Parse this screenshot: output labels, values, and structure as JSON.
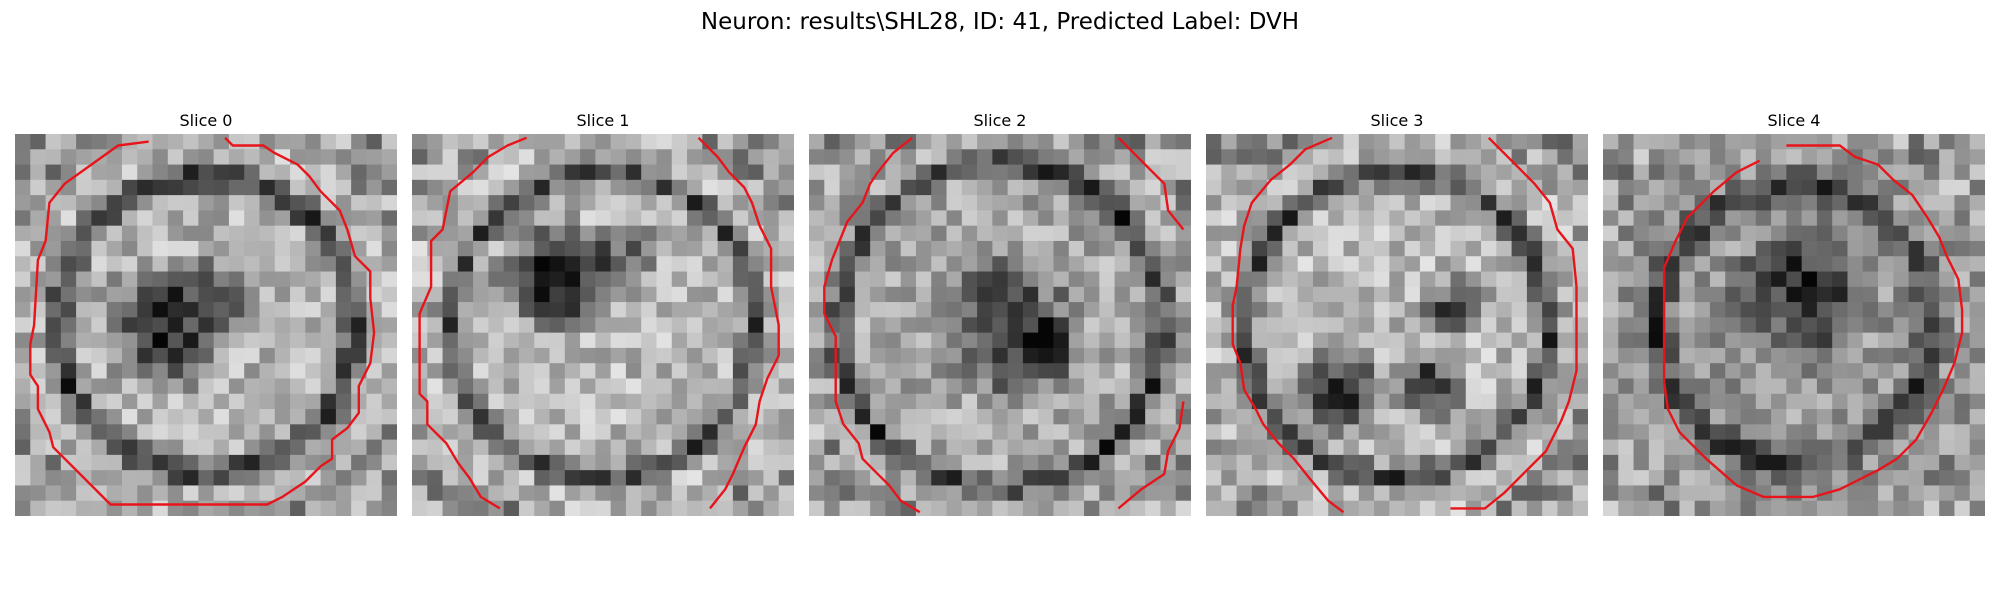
{
  "figure": {
    "title": "Neuron: results\\SHL28, ID: 41, Predicted Label: DVH"
  },
  "panels": [
    {
      "title": "Slice 0",
      "image": "grayscale-pixel-patch-with-contour"
    },
    {
      "title": "Slice 1",
      "image": "grayscale-pixel-patch-with-contour"
    },
    {
      "title": "Slice 2",
      "image": "grayscale-pixel-patch-with-contour"
    },
    {
      "title": "Slice 3",
      "image": "grayscale-pixel-patch-with-contour"
    },
    {
      "title": "Slice 4",
      "image": "grayscale-pixel-patch-with-contour"
    }
  ],
  "colors": {
    "contour": "#e8141b",
    "background": "#ffffff"
  }
}
